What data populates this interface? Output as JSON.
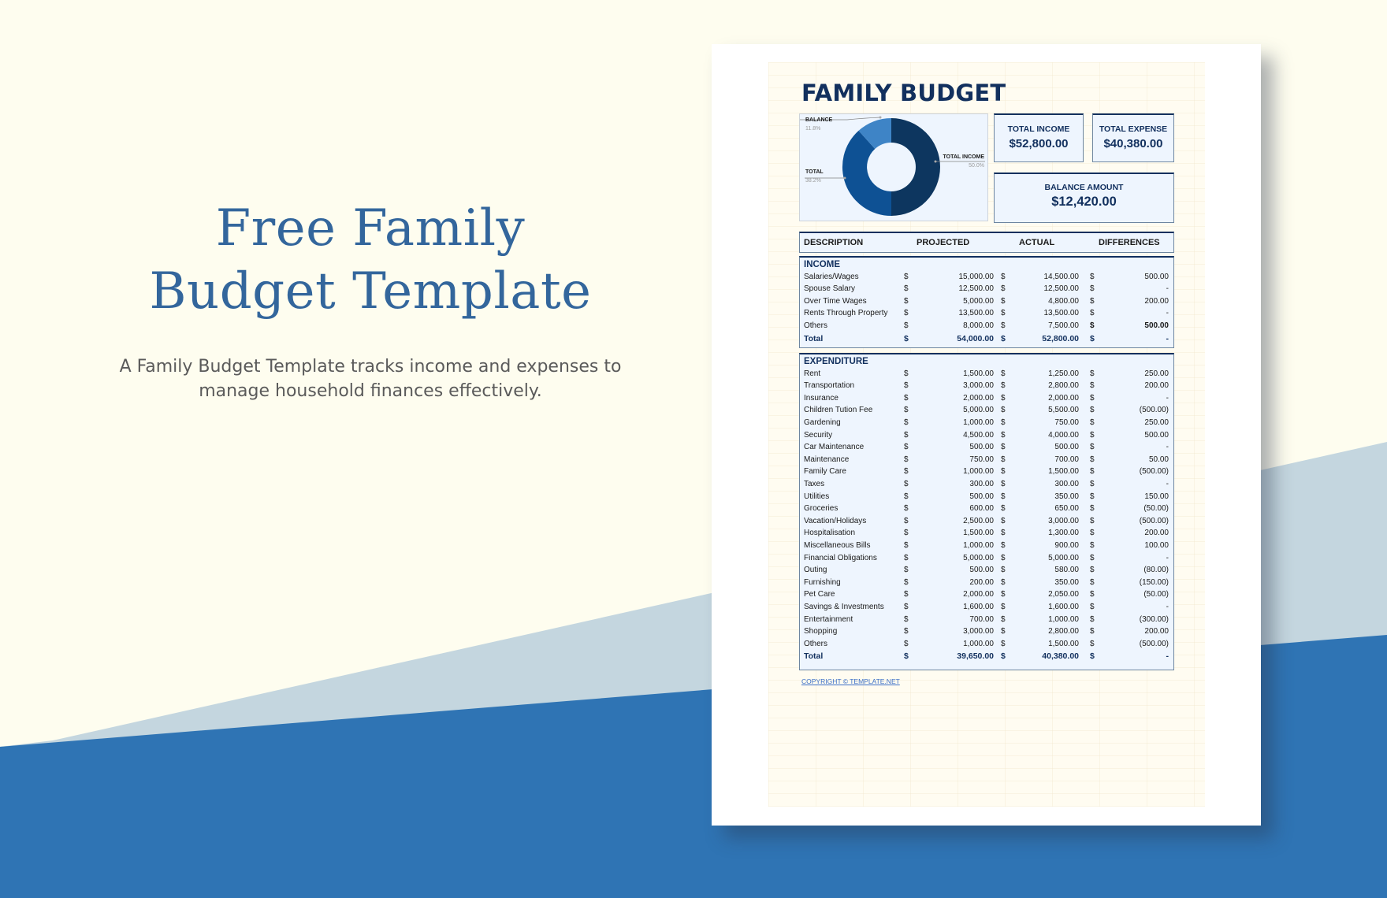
{
  "promo": {
    "title_line1": "Free Family",
    "title_line2": "Budget Template",
    "description_line1": "A Family Budget Template tracks income and expenses to",
    "description_line2": "manage household finances effectively."
  },
  "colors": {
    "background_cream": "#fefdef",
    "band_light": "#c4d6df",
    "band_dark": "#2f74b4",
    "title_blue": "#33669c",
    "navy": "#12305e",
    "panel_fill": "#eef5fe"
  },
  "document": {
    "title": "FAMILY BUDGET",
    "kpis": {
      "total_income": {
        "label": "TOTAL INCOME",
        "value": "$52,800.00"
      },
      "total_expense": {
        "label": "TOTAL EXPENSE",
        "value": "$40,380.00"
      },
      "balance": {
        "label": "BALANCE AMOUNT",
        "value": "$12,420.00"
      }
    },
    "table_headers": [
      "DESCRIPTION",
      "PROJECTED",
      "ACTUAL",
      "DIFFERENCES"
    ],
    "income": {
      "title": "INCOME",
      "rows": [
        {
          "desc": "Salaries/Wages",
          "cur": "$",
          "projected": "15,000.00",
          "actual": "14,500.00",
          "difference": "500.00"
        },
        {
          "desc": "Spouse Salary",
          "cur": "$",
          "projected": "12,500.00",
          "actual": "12,500.00",
          "difference": "-"
        },
        {
          "desc": "Over Time Wages",
          "cur": "$",
          "projected": "5,000.00",
          "actual": "4,800.00",
          "difference": "200.00"
        },
        {
          "desc": "Rents Through Property",
          "cur": "$",
          "projected": "13,500.00",
          "actual": "13,500.00",
          "difference": "-"
        },
        {
          "desc": "Others",
          "cur": "$",
          "projected": "8,000.00",
          "actual": "7,500.00",
          "difference": "500.00"
        }
      ],
      "total": {
        "desc": "Total",
        "cur": "$",
        "projected": "54,000.00",
        "actual": "52,800.00",
        "difference": "-"
      }
    },
    "expenditure": {
      "title": "EXPENDITURE",
      "rows": [
        {
          "desc": "Rent",
          "cur": "$",
          "projected": "1,500.00",
          "actual": "1,250.00",
          "difference": "250.00"
        },
        {
          "desc": "Transportation",
          "cur": "$",
          "projected": "3,000.00",
          "actual": "2,800.00",
          "difference": "200.00"
        },
        {
          "desc": "Insurance",
          "cur": "$",
          "projected": "2,000.00",
          "actual": "2,000.00",
          "difference": "-"
        },
        {
          "desc": "Children Tution Fee",
          "cur": "$",
          "projected": "5,000.00",
          "actual": "5,500.00",
          "difference": "(500.00)"
        },
        {
          "desc": "Gardening",
          "cur": "$",
          "projected": "1,000.00",
          "actual": "750.00",
          "difference": "250.00"
        },
        {
          "desc": "Security",
          "cur": "$",
          "projected": "4,500.00",
          "actual": "4,000.00",
          "difference": "500.00"
        },
        {
          "desc": "Car Maintenance",
          "cur": "$",
          "projected": "500.00",
          "actual": "500.00",
          "difference": "-"
        },
        {
          "desc": "Maintenance",
          "cur": "$",
          "projected": "750.00",
          "actual": "700.00",
          "difference": "50.00"
        },
        {
          "desc": "Family Care",
          "cur": "$",
          "projected": "1,000.00",
          "actual": "1,500.00",
          "difference": "(500.00)"
        },
        {
          "desc": "Taxes",
          "cur": "$",
          "projected": "300.00",
          "actual": "300.00",
          "difference": "-"
        },
        {
          "desc": "Utilities",
          "cur": "$",
          "projected": "500.00",
          "actual": "350.00",
          "difference": "150.00"
        },
        {
          "desc": "Groceries",
          "cur": "$",
          "projected": "600.00",
          "actual": "650.00",
          "difference": "(50.00)"
        },
        {
          "desc": "Vacation/Holidays",
          "cur": "$",
          "projected": "2,500.00",
          "actual": "3,000.00",
          "difference": "(500.00)"
        },
        {
          "desc": "Hospitalisation",
          "cur": "$",
          "projected": "1,500.00",
          "actual": "1,300.00",
          "difference": "200.00"
        },
        {
          "desc": "Miscellaneous Bills",
          "cur": "$",
          "projected": "1,000.00",
          "actual": "900.00",
          "difference": "100.00"
        },
        {
          "desc": "Financial Obligations",
          "cur": "$",
          "projected": "5,000.00",
          "actual": "5,000.00",
          "difference": "-"
        },
        {
          "desc": "Outing",
          "cur": "$",
          "projected": "500.00",
          "actual": "580.00",
          "difference": "(80.00)"
        },
        {
          "desc": "Furnishing",
          "cur": "$",
          "projected": "200.00",
          "actual": "350.00",
          "difference": "(150.00)"
        },
        {
          "desc": "Pet Care",
          "cur": "$",
          "projected": "2,000.00",
          "actual": "2,050.00",
          "difference": "(50.00)"
        },
        {
          "desc": "Savings & Investments",
          "cur": "$",
          "projected": "1,600.00",
          "actual": "1,600.00",
          "difference": "-"
        },
        {
          "desc": "Entertainment",
          "cur": "$",
          "projected": "700.00",
          "actual": "1,000.00",
          "difference": "(300.00)"
        },
        {
          "desc": "Shopping",
          "cur": "$",
          "projected": "3,000.00",
          "actual": "2,800.00",
          "difference": "200.00"
        },
        {
          "desc": "Others",
          "cur": "$",
          "projected": "1,000.00",
          "actual": "1,500.00",
          "difference": "(500.00)"
        }
      ],
      "total": {
        "desc": "Total",
        "cur": "$",
        "projected": "39,650.00",
        "actual": "40,380.00",
        "difference": "-"
      }
    },
    "copyright": "COPYRIGHT © TEMPLATE.NET"
  },
  "chart_data": {
    "type": "pie",
    "subtype": "donut",
    "categories": [
      "TOTAL INCOME",
      "TOTAL",
      "BALANCE"
    ],
    "values": [
      50.0,
      38.2,
      11.8
    ],
    "labels": [
      {
        "name": "TOTAL INCOME",
        "pct": "50.0%",
        "color": "#0d365f"
      },
      {
        "name": "TOTAL",
        "pct": "38.2%",
        "color": "#0e5194"
      },
      {
        "name": "BALANCE",
        "pct": "11.8%",
        "color": "#3e84c6"
      }
    ],
    "title": "",
    "legend": "outside labels with leader lines"
  }
}
